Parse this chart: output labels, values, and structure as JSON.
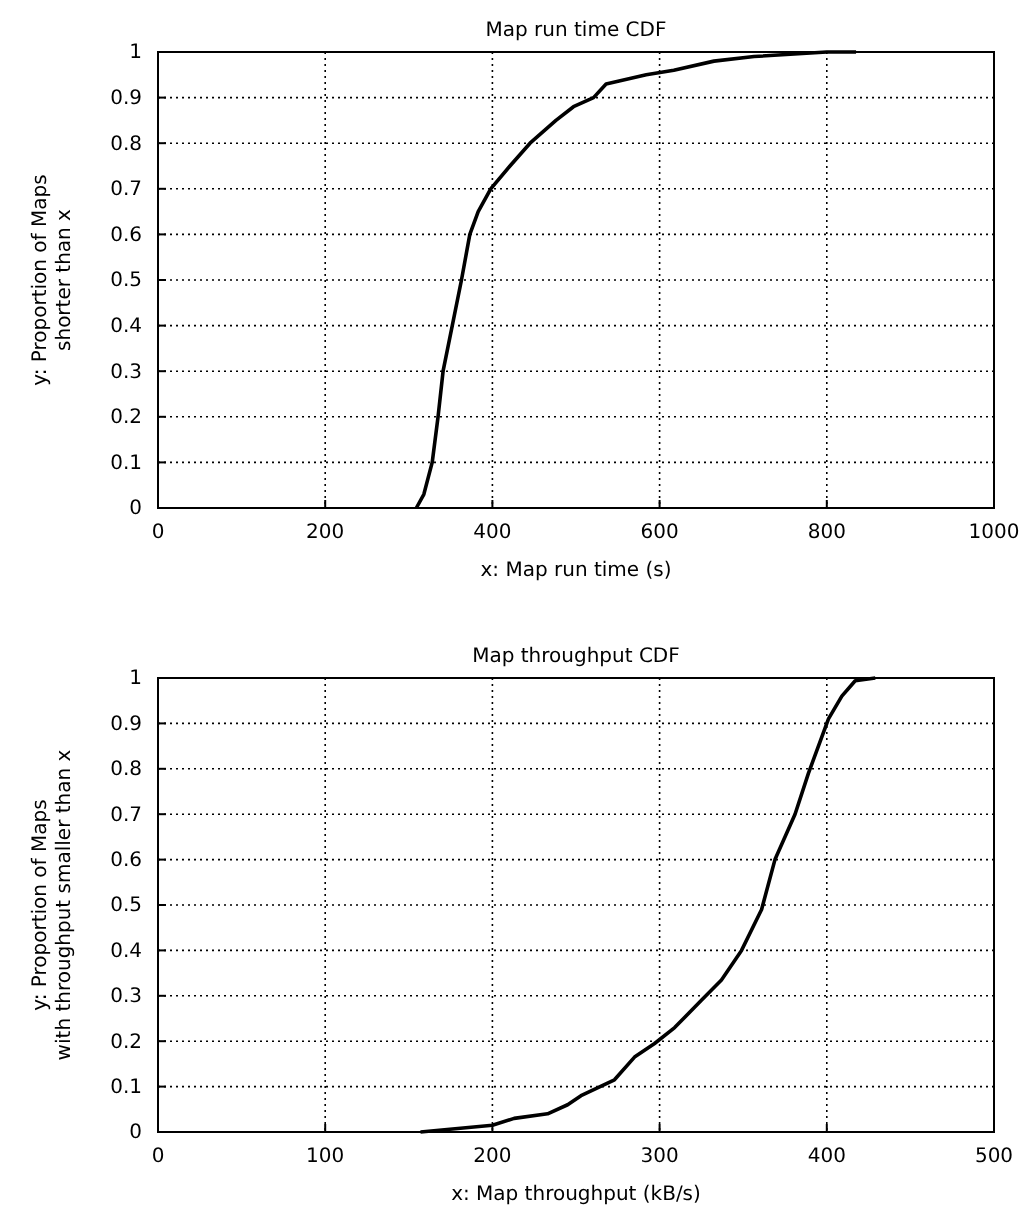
{
  "chart_data": [
    {
      "type": "line",
      "title": "Map run time CDF",
      "xlabel": "x: Map run time (s)",
      "ylabel": "y: Proportion of Maps\nshorter than x",
      "xlim": [
        0,
        1000
      ],
      "ylim": [
        0,
        1
      ],
      "xticks": [
        0,
        200,
        400,
        600,
        800,
        1000
      ],
      "yticks": [
        0,
        0.1,
        0.2,
        0.3,
        0.4,
        0.5,
        0.6,
        0.7,
        0.8,
        0.9,
        1
      ],
      "grid": true,
      "line_style": "solid",
      "series": [
        {
          "color": "#000000",
          "x": [
            309,
            318,
            328,
            335,
            341,
            352,
            363,
            373,
            383,
            398,
            421,
            445,
            476,
            497,
            521,
            536,
            584,
            617,
            665,
            713,
            800,
            835
          ],
          "values": [
            0,
            0.03,
            0.1,
            0.2,
            0.3,
            0.4,
            0.5,
            0.6,
            0.65,
            0.7,
            0.75,
            0.8,
            0.85,
            0.88,
            0.9,
            0.93,
            0.95,
            0.96,
            0.98,
            0.99,
            1,
            1
          ]
        }
      ]
    },
    {
      "type": "line",
      "title": "Map throughput CDF",
      "xlabel": "x: Map throughput (kB/s)",
      "ylabel": "y: Proportion of Maps\nwith throughput smaller than x",
      "xlim": [
        0,
        500
      ],
      "ylim": [
        0,
        1
      ],
      "xticks": [
        0,
        100,
        200,
        300,
        400,
        500
      ],
      "yticks": [
        0,
        0.1,
        0.2,
        0.3,
        0.4,
        0.5,
        0.6,
        0.7,
        0.8,
        0.9,
        1
      ],
      "grid": true,
      "line_style": "solid",
      "series": [
        {
          "color": "#000000",
          "x": [
            157,
            200,
            213,
            233,
            245,
            253,
            273,
            285,
            297,
            309,
            325,
            337,
            349,
            361,
            369,
            381,
            389,
            401,
            409,
            417,
            429
          ],
          "values": [
            0,
            0.015,
            0.03,
            0.04,
            0.06,
            0.08,
            0.115,
            0.165,
            0.195,
            0.23,
            0.29,
            0.335,
            0.4,
            0.49,
            0.6,
            0.7,
            0.79,
            0.91,
            0.96,
            0.994,
            1
          ]
        }
      ]
    }
  ]
}
